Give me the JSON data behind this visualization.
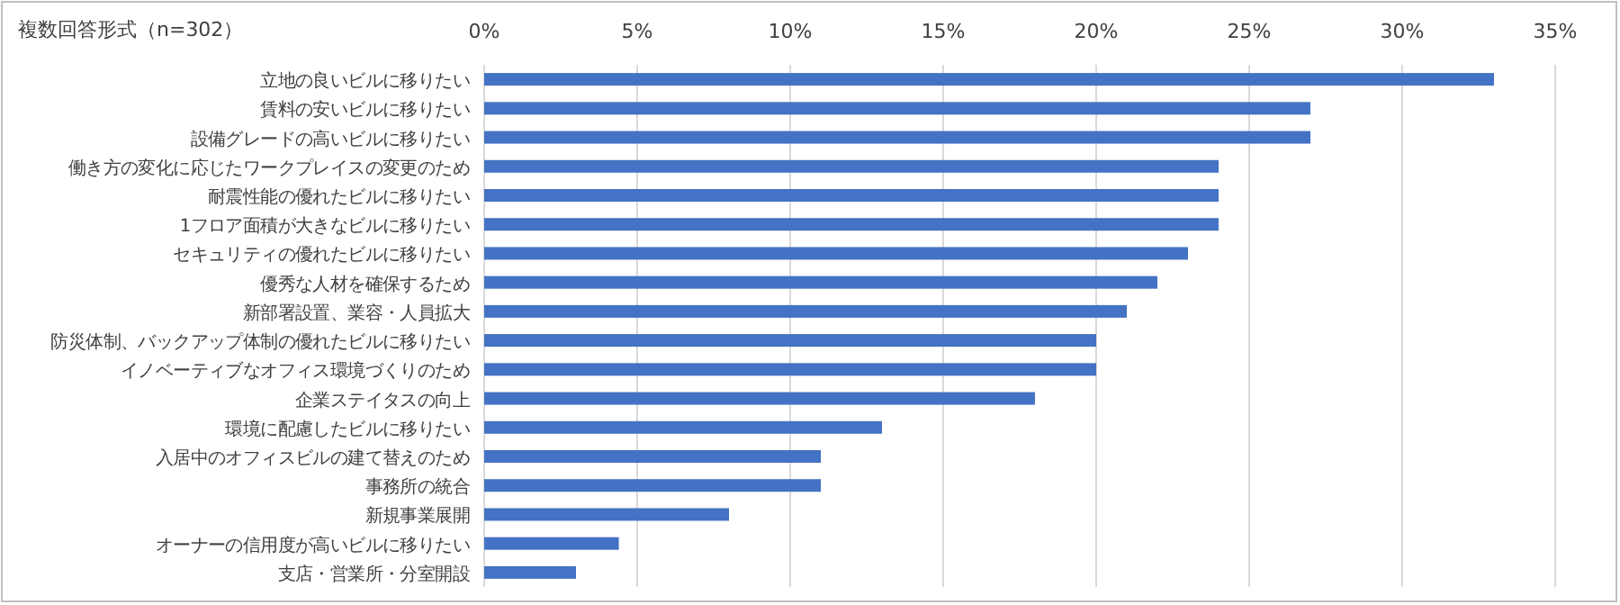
{
  "chart_data": {
    "type": "bar",
    "orientation": "horizontal",
    "title": "複数回答形式（n=302）",
    "categories": [
      "立地の良いビルに移りたい",
      "賃料の安いビルに移りたい",
      "設備グレードの高いビルに移りたい",
      "働き方の変化に応じたワークプレイスの変更のため",
      "耐震性能の優れたビルに移りたい",
      "1フロア面積が大きなビルに移りたい",
      "セキュリティの優れたビルに移りたい",
      "優秀な人材を確保するため",
      "新部署設置、業容・人員拡大",
      "防災体制、バックアップ体制の優れたビルに移りたい",
      "イノベーティブなオフィス環境づくりのため",
      "企業ステイタスの向上",
      "環境に配慮したビルに移りたい",
      "入居中のオフィスビルの建て替えのため",
      "事務所の統合",
      "新規事業展開",
      "オーナーの信用度が高いビルに移りたい",
      "支店・営業所・分室開設"
    ],
    "values": [
      33,
      27,
      27,
      24,
      24,
      24,
      23,
      22,
      21,
      20,
      20,
      18,
      13,
      11,
      11,
      8,
      4.4,
      3
    ],
    "color": "#4472c4",
    "xlim": [
      0,
      35
    ],
    "xticks": [
      {
        "value": 0,
        "label": "0%"
      },
      {
        "value": 5,
        "label": "5%"
      },
      {
        "value": 10,
        "label": "10%"
      },
      {
        "value": 15,
        "label": "15%"
      },
      {
        "value": 20,
        "label": "20%"
      },
      {
        "value": 25,
        "label": "25%"
      },
      {
        "value": 30,
        "label": "30%"
      },
      {
        "value": 35,
        "label": "35%"
      }
    ],
    "grid": "x"
  }
}
